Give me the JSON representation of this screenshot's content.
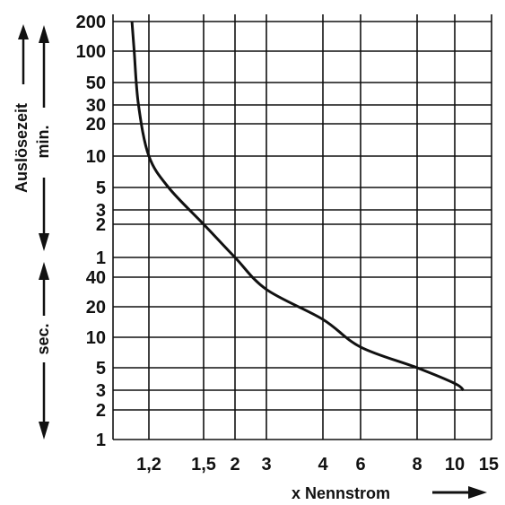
{
  "chart_data": {
    "type": "line",
    "title": "",
    "xlabel": "x Nennstrom",
    "ylabel": "Auslösezeit",
    "y_unit_upper": "min.",
    "y_unit_lower": "sec.",
    "x_scale": "log",
    "x_tick_labels": [
      "1,2",
      "1,5",
      "2",
      "3",
      "4",
      "6",
      "8",
      "10",
      "15"
    ],
    "y_upper_tick_labels": [
      "200",
      "100",
      "50",
      "30",
      "20",
      "10",
      "5",
      "3",
      "2",
      "1"
    ],
    "y_lower_tick_labels": [
      "40",
      "20",
      "10",
      "5",
      "3",
      "2",
      "1"
    ],
    "grid": true,
    "series": [
      {
        "points": [
          {
            "x": 1.12,
            "t": "200 min"
          },
          {
            "x": 1.13,
            "t": "100 min"
          },
          {
            "x": 1.15,
            "t": "30 min"
          },
          {
            "x": 1.2,
            "t": "10 min"
          },
          {
            "x": 1.3,
            "t": "5 min"
          },
          {
            "x": 1.5,
            "t": "2 min"
          },
          {
            "x": 2,
            "t": "1 min"
          },
          {
            "x": 3,
            "t": "30 sec"
          },
          {
            "x": 4,
            "t": "15 sec"
          },
          {
            "x": 6,
            "t": "8 sec"
          },
          {
            "x": 8,
            "t": "5 sec"
          },
          {
            "x": 10,
            "t": "3.5 sec"
          },
          {
            "x": 11,
            "t": "3 sec"
          }
        ]
      }
    ],
    "colors": {
      "ink": "#111111",
      "background": "#ffffff"
    }
  }
}
